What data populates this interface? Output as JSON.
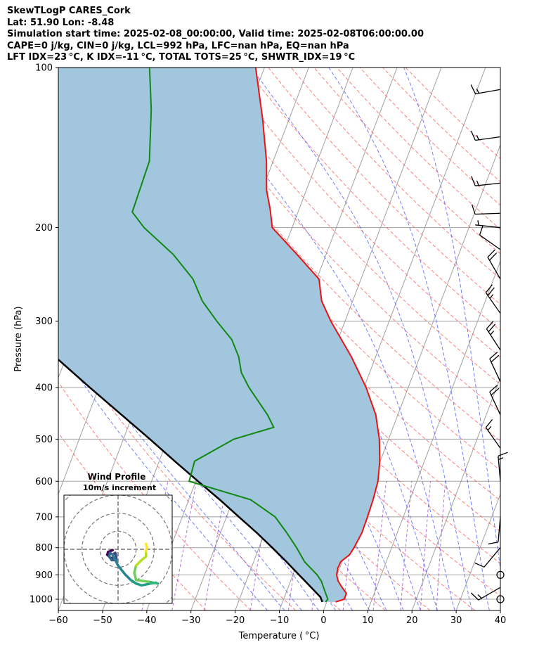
{
  "header": {
    "line1": "SkewTLogP CARES_Cork",
    "line2": "Lat: 51.90   Lon: -8.48",
    "line3": "Simulation start time: 2025-02-08_00:00:00, Valid time: 2025-02-08T06:00:00.00",
    "line4": "CAPE=0 j/kg, CIN=0 j/kg, LCL=992 hPa, LFC=nan hPa, EQ=nan hPa",
    "line5": "LFT IDX=23 °C, K IDX=-11 °C, TOTAL TOTS=25 °C, SHWTR_IDX=19 °C"
  },
  "colors": {
    "temperature": "#ee1111",
    "dewpoint": "#118811",
    "parcel": "#000000",
    "fill": "#a3c6df",
    "dry_adiabat": "#ff5555",
    "moist_adiabat": "#4455ff",
    "mixing_ratio": "#a050d0",
    "isotherm": "#a0a0a0"
  },
  "chart_data": [
    {
      "type": "line",
      "xlabel": "Temperature ( °C)",
      "ylabel": "Pressure (hPa)",
      "xlim": [
        -60,
        40
      ],
      "ylim": [
        1050,
        100
      ],
      "y_scale": "log",
      "skew": "skew-T",
      "grid": true,
      "x_ticks": [
        "−60",
        "−50",
        "−40",
        "−30",
        "−20",
        "−10",
        "0",
        "10",
        "20",
        "30",
        "40"
      ],
      "y_ticks": [
        "100",
        "200",
        "300",
        "400",
        "500",
        "600",
        "700",
        "800",
        "900",
        "1000"
      ],
      "series": [
        {
          "role": "temperature",
          "points": [
            [
              1012,
              2
            ],
            [
              1000,
              3.7
            ],
            [
              975,
              3.7
            ],
            [
              950,
              2.2
            ],
            [
              925,
              0.8
            ],
            [
              900,
              -0.1
            ],
            [
              875,
              -0.4
            ],
            [
              850,
              -0.3
            ],
            [
              825,
              1.1
            ],
            [
              800,
              1.5
            ],
            [
              750,
              2.0
            ],
            [
              700,
              1.9
            ],
            [
              650,
              1.7
            ],
            [
              600,
              1.2
            ],
            [
              550,
              -0.1
            ],
            [
              500,
              -2.1
            ],
            [
              450,
              -5.0
            ],
            [
              400,
              -9.5
            ],
            [
              350,
              -15.5
            ],
            [
              300,
              -23.2
            ],
            [
              275,
              -27.0
            ],
            [
              250,
              -29.5
            ],
            [
              225,
              -36.5
            ],
            [
              200,
              -44.5
            ],
            [
              185,
              -46.5
            ],
            [
              170,
              -49.0
            ],
            [
              150,
              -51.5
            ],
            [
              125,
              -56.0
            ],
            [
              100,
              -62.0
            ]
          ]
        },
        {
          "role": "dewpoint",
          "points": [
            [
              1012,
              -0.3
            ],
            [
              1000,
              0
            ],
            [
              975,
              -1.0
            ],
            [
              950,
              -2.0
            ],
            [
              925,
              -3.0
            ],
            [
              900,
              -4.5
            ],
            [
              875,
              -6.5
            ],
            [
              850,
              -8.5
            ],
            [
              800,
              -11.5
            ],
            [
              750,
              -15.0
            ],
            [
              700,
              -19.0
            ],
            [
              650,
              -26.0
            ],
            [
              600,
              -41.5
            ],
            [
              550,
              -42.0
            ],
            [
              500,
              -35.0
            ],
            [
              475,
              -27.0
            ],
            [
              450,
              -29.5
            ],
            [
              400,
              -36.0
            ],
            [
              375,
              -39.0
            ],
            [
              350,
              -41.0
            ],
            [
              325,
              -44.0
            ],
            [
              300,
              -49.0
            ],
            [
              275,
              -54.0
            ],
            [
              250,
              -58.0
            ],
            [
              225,
              -64.5
            ],
            [
              200,
              -73.5
            ],
            [
              187,
              -77.5
            ],
            [
              150,
              -78.0
            ],
            [
              120,
              -82.0
            ],
            [
              100,
              -86.0
            ]
          ]
        },
        {
          "role": "parcel profile",
          "points": [
            [
              1012,
              -1.0
            ],
            [
              1000,
              -1.5
            ],
            [
              992,
              -1.8
            ],
            [
              950,
              -4.8
            ],
            [
              900,
              -8.6
            ],
            [
              850,
              -12.6
            ],
            [
              800,
              -17.0
            ],
            [
              750,
              -21.8
            ],
            [
              700,
              -27.2
            ],
            [
              650,
              -33.0
            ],
            [
              600,
              -39.5
            ],
            [
              550,
              -46.5
            ],
            [
              500,
              -54.0
            ],
            [
              450,
              -62.5
            ],
            [
              400,
              -72.0
            ],
            [
              350,
              -82.5
            ],
            [
              300,
              -94.0
            ],
            [
              250,
              -107.5
            ],
            [
              200,
              -123.0
            ],
            [
              150,
              -141.0
            ],
            [
              100,
              -165.0
            ]
          ]
        }
      ]
    },
    {
      "type": "line",
      "title": "Wind Profile",
      "subtitle": "10m/s increment",
      "xlim": [
        -30,
        30
      ],
      "ylim": [
        -30,
        30
      ],
      "ring_spacing": 10,
      "grid": true,
      "colormap": "viridis",
      "points": [
        [
          -3.0,
          -0.5
        ],
        [
          -5.5,
          -1.5
        ],
        [
          -6.0,
          -3.0
        ],
        [
          -4.0,
          -5.0
        ],
        [
          -2.5,
          -4.5
        ],
        [
          -3.0,
          -3.0
        ],
        [
          -1.5,
          -2.0
        ],
        [
          -1.0,
          -4.0
        ],
        [
          -1.0,
          -6.0
        ],
        [
          -3.5,
          -6.0
        ],
        [
          -5.0,
          -4.0
        ],
        [
          -4.5,
          -2.0
        ],
        [
          -3.0,
          -3.0
        ],
        [
          0.0,
          -9.0
        ],
        [
          4.0,
          -14.0
        ],
        [
          7.0,
          -17.0
        ],
        [
          10.0,
          -19.0
        ],
        [
          13.0,
          -20.0
        ],
        [
          18.0,
          -19.0
        ],
        [
          21.0,
          -18.5
        ],
        [
          22.0,
          -19.0
        ],
        [
          17.0,
          -18.0
        ],
        [
          10.0,
          -17.0
        ],
        [
          9.0,
          -13.0
        ],
        [
          10.0,
          -9.0
        ],
        [
          13.0,
          -6.0
        ],
        [
          15.5,
          -4.0
        ],
        [
          15.5,
          -1.0
        ],
        [
          16.0,
          1.0
        ],
        [
          15.5,
          3.0
        ]
      ]
    }
  ],
  "wind_barbs": [
    {
      "p": 110,
      "speed": 15,
      "dir": 260
    },
    {
      "p": 135,
      "speed": 15,
      "dir": 262
    },
    {
      "p": 165,
      "speed": 15,
      "dir": 264
    },
    {
      "p": 188,
      "speed": 10,
      "dir": 268
    },
    {
      "p": 200,
      "speed": 5,
      "dir": 276
    },
    {
      "p": 220,
      "speed": 10,
      "dir": 305
    },
    {
      "p": 250,
      "speed": 20,
      "dir": 330
    },
    {
      "p": 290,
      "speed": 25,
      "dir": 325
    },
    {
      "p": 340,
      "speed": 25,
      "dir": 327
    },
    {
      "p": 390,
      "speed": 20,
      "dir": 335
    },
    {
      "p": 450,
      "speed": 20,
      "dir": 335
    },
    {
      "p": 520,
      "speed": 15,
      "dir": 325
    },
    {
      "p": 600,
      "speed": 15,
      "dir": 355
    },
    {
      "p": 700,
      "speed": 10,
      "dir": 185
    },
    {
      "p": 800,
      "speed": 10,
      "dir": 220
    },
    {
      "p": 900,
      "speed": 0,
      "dir": 0
    },
    {
      "p": 950,
      "speed": 15,
      "dir": 240
    },
    {
      "p": 1000,
      "speed": 0,
      "dir": 0
    }
  ]
}
